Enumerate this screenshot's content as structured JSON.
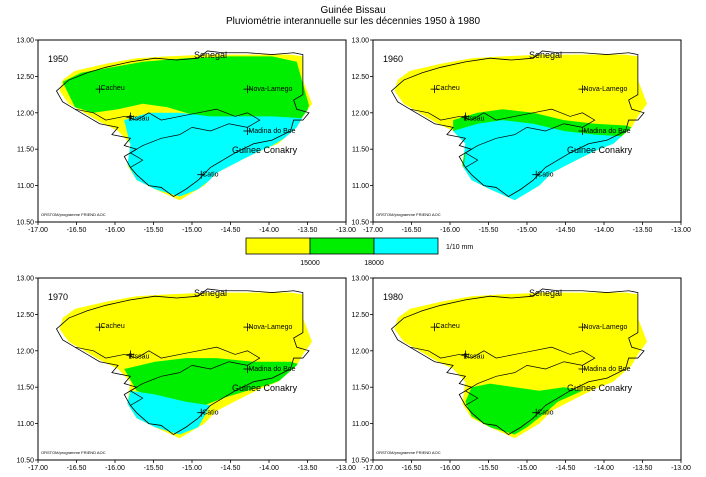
{
  "header": {
    "title": "Guinée Bissau",
    "subtitle": "Pluviométrie interannuelle sur les décennies 1950 à 1980"
  },
  "axes": {
    "x_ticks": [
      "-17.00",
      "-16.50",
      "-16.00",
      "-15.50",
      "-15.00",
      "-14.50",
      "-14.00",
      "-13.50",
      "-13.00"
    ],
    "y_ticks": [
      "13.00",
      "12.50",
      "12.00",
      "11.50",
      "11.00",
      "10.50"
    ],
    "x_range": [
      -17.0,
      -13.0
    ],
    "y_range": [
      10.5,
      13.0
    ]
  },
  "legend": {
    "colors": [
      "#ffff00",
      "#00ee00",
      "#00ffff"
    ],
    "thresholds": [
      "15000",
      "18000"
    ],
    "unit": "1/10 mm"
  },
  "place_labels": {
    "senegal": "Senegal",
    "guinee_conakry": "Guinee Conakry",
    "cacheu": "Cacheu",
    "bissau": "Bissau",
    "nova_lamego": "Nova-Lamego",
    "madina_do_boe": "Madina do Boe",
    "catio": "Catio"
  },
  "credit": "ORSTOM/programme FRIEND AOC",
  "panels": [
    {
      "year": "1950"
    },
    {
      "year": "1960"
    },
    {
      "year": "1970"
    },
    {
      "year": "1980"
    }
  ]
}
